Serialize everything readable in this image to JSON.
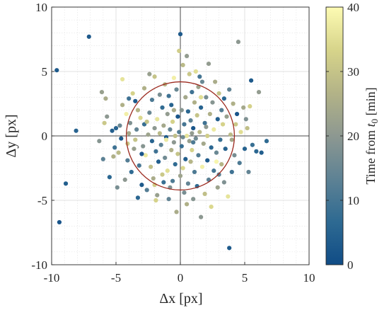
{
  "chart_data": {
    "type": "scatter",
    "xlabel": "Δx [px]",
    "ylabel": "Δy [px]",
    "xlim": [
      -10,
      10
    ],
    "ylim": [
      -10,
      10
    ],
    "xticks": [
      -10,
      -5,
      0,
      5,
      10
    ],
    "yticks": [
      -10,
      -5,
      0,
      5,
      10
    ],
    "grid": true,
    "minor_grid": true,
    "reference_lines": {
      "x": 0,
      "y": 0
    },
    "circle": {
      "center": [
        0,
        0
      ],
      "radius": 4.2,
      "color": "#9c2a1f"
    },
    "colorbar": {
      "label_prefix": "Time from ",
      "label_var": "t",
      "label_sub": "0",
      "label_suffix": " [min]",
      "range": [
        0,
        40
      ],
      "ticks": [
        0,
        10,
        20,
        30,
        40
      ],
      "colors": [
        "#104c86",
        "#2e6a92",
        "#5e8294",
        "#8d9891",
        "#b3b387",
        "#d7d48a",
        "#fdfbb3"
      ]
    },
    "points": [
      [
        -9.6,
        5.1,
        3
      ],
      [
        -9.4,
        -6.7,
        2
      ],
      [
        -8.9,
        -3.7,
        4
      ],
      [
        -7.1,
        7.7,
        3
      ],
      [
        -8.1,
        0.4,
        5
      ],
      [
        -6.1,
        3.4,
        22
      ],
      [
        -5.8,
        2.9,
        25
      ],
      [
        -5.7,
        1.5,
        20
      ],
      [
        -5.5,
        -3.2,
        6
      ],
      [
        -5.3,
        0.4,
        4
      ],
      [
        -5.1,
        -0.9,
        9
      ],
      [
        -5.0,
        0.6,
        5
      ],
      [
        -4.8,
        -1.3,
        28
      ],
      [
        -4.7,
        0.8,
        15
      ],
      [
        -4.6,
        -0.2,
        3
      ],
      [
        -4.5,
        4.4,
        36
      ],
      [
        -4.5,
        2.4,
        26
      ],
      [
        -4.3,
        -3.4,
        20
      ],
      [
        -4.1,
        -1.9,
        12
      ],
      [
        -4.1,
        -0.6,
        31
      ],
      [
        -4.0,
        0.2,
        24
      ],
      [
        -3.9,
        1.0,
        18
      ],
      [
        -3.8,
        -2.8,
        7
      ],
      [
        -3.7,
        3.3,
        33
      ],
      [
        -3.6,
        -1.0,
        22
      ],
      [
        -3.5,
        -0.3,
        30
      ],
      [
        -3.4,
        0.5,
        14
      ],
      [
        -3.3,
        -4.8,
        6
      ],
      [
        -3.3,
        2.0,
        27
      ],
      [
        -3.2,
        -2.3,
        10
      ],
      [
        -3.1,
        1.4,
        34
      ],
      [
        -3.0,
        -3.8,
        3
      ],
      [
        -2.9,
        -0.8,
        19
      ],
      [
        -2.8,
        0.9,
        8
      ],
      [
        -2.8,
        3.7,
        26
      ],
      [
        -2.7,
        -1.5,
        37
      ],
      [
        -2.6,
        -4.2,
        12
      ],
      [
        -2.5,
        0.1,
        23
      ],
      [
        -2.4,
        1.8,
        15
      ],
      [
        -2.3,
        -2.4,
        29
      ],
      [
        -2.2,
        2.8,
        11
      ],
      [
        -2.2,
        -0.4,
        5
      ],
      [
        -2.1,
        -3.3,
        25
      ],
      [
        -2.0,
        4.6,
        30
      ],
      [
        -2.0,
        0.6,
        20
      ],
      [
        -1.9,
        -1.2,
        9
      ],
      [
        -1.8,
        1.3,
        36
      ],
      [
        -1.8,
        -4.6,
        22
      ],
      [
        -1.7,
        -2.0,
        4
      ],
      [
        -1.6,
        0.2,
        28
      ],
      [
        -1.6,
        3.2,
        17
      ],
      [
        -1.5,
        -0.7,
        13
      ],
      [
        -1.4,
        2.2,
        7
      ],
      [
        -1.4,
        -3.0,
        31
      ],
      [
        -1.3,
        0.8,
        24
      ],
      [
        -1.2,
        -1.7,
        16
      ],
      [
        -1.2,
        4.0,
        27
      ],
      [
        -1.1,
        -0.1,
        3
      ],
      [
        -1.0,
        1.7,
        21
      ],
      [
        -1.0,
        -2.7,
        35
      ],
      [
        -0.9,
        3.1,
        9
      ],
      [
        -0.8,
        -4.0,
        18
      ],
      [
        -0.8,
        0.5,
        14
      ],
      [
        -0.7,
        -1.1,
        26
      ],
      [
        -0.7,
        2.4,
        5
      ],
      [
        -0.6,
        -3.5,
        11
      ],
      [
        -0.6,
        1.1,
        33
      ],
      [
        -0.5,
        -0.5,
        20
      ],
      [
        -0.5,
        4.5,
        38
      ],
      [
        -0.4,
        -2.2,
        7
      ],
      [
        -0.4,
        0.0,
        29
      ],
      [
        -0.3,
        3.6,
        15
      ],
      [
        -0.3,
        -5.9,
        25
      ],
      [
        -0.2,
        1.5,
        2
      ],
      [
        -0.2,
        -1.4,
        30
      ],
      [
        -0.1,
        6.6,
        32
      ],
      [
        -0.1,
        0.3,
        12
      ],
      [
        0.0,
        -3.1,
        23
      ],
      [
        0.0,
        7.9,
        3
      ],
      [
        0.1,
        2.0,
        19
      ],
      [
        0.1,
        -0.8,
        8
      ],
      [
        0.2,
        5.5,
        28
      ],
      [
        0.2,
        -2.5,
        34
      ],
      [
        0.3,
        0.9,
        10
      ],
      [
        0.3,
        -4.4,
        17
      ],
      [
        0.4,
        3.0,
        24
      ],
      [
        0.4,
        -1.8,
        4
      ],
      [
        0.5,
        6.2,
        21
      ],
      [
        0.5,
        0.0,
        36
      ],
      [
        0.6,
        -3.7,
        14
      ],
      [
        0.6,
        1.9,
        6
      ],
      [
        0.7,
        4.8,
        31
      ],
      [
        0.7,
        -0.4,
        22
      ],
      [
        0.8,
        -2.0,
        27
      ],
      [
        0.8,
        1.2,
        13
      ],
      [
        0.9,
        3.4,
        9
      ],
      [
        0.9,
        -1.1,
        33
      ],
      [
        1.0,
        -4.9,
        19
      ],
      [
        1.0,
        0.6,
        2
      ],
      [
        1.1,
        2.6,
        26
      ],
      [
        1.1,
        -2.8,
        11
      ],
      [
        1.2,
        5.0,
        35
      ],
      [
        1.2,
        -0.2,
        16
      ],
      [
        1.3,
        1.6,
        30
      ],
      [
        1.3,
        -3.9,
        7
      ],
      [
        1.4,
        3.8,
        23
      ],
      [
        1.4,
        -1.5,
        12
      ],
      [
        1.5,
        0.3,
        28
      ],
      [
        1.6,
        -6.3,
        20
      ],
      [
        1.6,
        2.2,
        5
      ],
      [
        1.7,
        -2.4,
        38
      ],
      [
        1.7,
        4.2,
        15
      ],
      [
        1.8,
        -0.6,
        24
      ],
      [
        1.9,
        1.0,
        9
      ],
      [
        1.9,
        -4.5,
        29
      ],
      [
        2.0,
        3.0,
        17
      ],
      [
        2.1,
        -1.9,
        3
      ],
      [
        2.1,
        0.0,
        32
      ],
      [
        2.2,
        5.6,
        21
      ],
      [
        2.2,
        -3.4,
        13
      ],
      [
        2.3,
        1.7,
        26
      ],
      [
        2.4,
        -5.5,
        34
      ],
      [
        2.4,
        -0.9,
        6
      ],
      [
        2.5,
        2.6,
        19
      ],
      [
        2.6,
        -2.7,
        10
      ],
      [
        2.6,
        0.5,
        37
      ],
      [
        2.7,
        4.2,
        25
      ],
      [
        2.8,
        -1.3,
        15
      ],
      [
        2.9,
        1.3,
        4
      ],
      [
        2.9,
        -4.0,
        23
      ],
      [
        3.0,
        3.3,
        30
      ],
      [
        3.1,
        -0.3,
        8
      ],
      [
        3.2,
        -2.2,
        27
      ],
      [
        3.2,
        2.0,
        12
      ],
      [
        3.3,
        0.9,
        33
      ],
      [
        3.4,
        -3.6,
        18
      ],
      [
        3.5,
        -1.0,
        5
      ],
      [
        3.6,
        1.5,
        22
      ],
      [
        3.7,
        -4.7,
        36
      ],
      [
        3.8,
        3.6,
        14
      ],
      [
        3.8,
        -8.7,
        3
      ],
      [
        3.9,
        0.1,
        28
      ],
      [
        4.0,
        -2.8,
        9
      ],
      [
        4.1,
        2.5,
        26
      ],
      [
        4.2,
        -1.5,
        17
      ],
      [
        4.3,
        0.9,
        31
      ],
      [
        4.4,
        1.7,
        2
      ],
      [
        4.5,
        7.3,
        20
      ],
      [
        4.6,
        -2.1,
        11
      ],
      [
        4.7,
        0.3,
        35
      ],
      [
        4.9,
        2.2,
        24
      ],
      [
        5.0,
        -1.0,
        5
      ],
      [
        5.1,
        1.3,
        18
      ],
      [
        5.2,
        0.6,
        29
      ],
      [
        5.3,
        -2.8,
        14
      ],
      [
        5.4,
        2.3,
        33
      ],
      [
        5.5,
        4.3,
        3
      ],
      [
        5.6,
        -0.7,
        8
      ],
      [
        5.9,
        -1.2,
        6
      ],
      [
        6.1,
        3.4,
        21
      ],
      [
        6.3,
        -1.3,
        4
      ],
      [
        6.7,
        -0.4,
        7
      ],
      [
        -6.3,
        -0.4,
        19
      ],
      [
        -6.0,
        -1.8,
        13
      ],
      [
        -5.9,
        1.0,
        31
      ],
      [
        -5.2,
        -1.6,
        26
      ],
      [
        -4.9,
        -4.0,
        17
      ],
      [
        -4.2,
        1.7,
        38
      ],
      [
        -3.5,
        2.7,
        3
      ],
      [
        -2.4,
        4.8,
        22
      ],
      [
        -1.9,
        -5.0,
        33
      ],
      [
        -1.3,
        -3.6,
        8
      ],
      [
        -0.9,
        -4.9,
        14
      ],
      [
        0.5,
        -5.3,
        26
      ],
      [
        1.5,
        4.6,
        10
      ],
      [
        2.8,
        -2.0,
        39
      ],
      [
        3.4,
        2.9,
        6
      ],
      [
        4.0,
        -0.3,
        24
      ],
      [
        -1.1,
        -0.3,
        37
      ],
      [
        0.2,
        -0.1,
        16
      ],
      [
        -2.0,
        -3.8,
        32
      ],
      [
        -3.0,
        -1.4,
        2
      ],
      [
        2.0,
        0.7,
        20
      ],
      [
        1.0,
        -0.5,
        11
      ],
      [
        -0.5,
        2.0,
        25
      ],
      [
        3.0,
        -3.0,
        13
      ],
      [
        -4.0,
        2.9,
        9
      ],
      [
        -2.6,
        1.1,
        30
      ],
      [
        0.9,
        0.2,
        21
      ],
      [
        1.6,
        3.0,
        35
      ]
    ]
  }
}
